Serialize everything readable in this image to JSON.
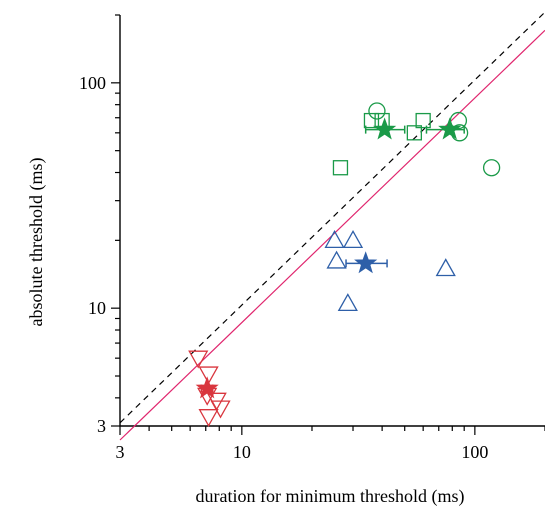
{
  "chart_data": {
    "type": "scatter",
    "xlabel": "duration for minimum threshold (ms)",
    "ylabel": "absolute threshold (ms)",
    "x_scale": "log",
    "y_scale": "log",
    "xlim": [
      3,
      200
    ],
    "ylim": [
      3,
      200
    ],
    "x_ticks": [
      3,
      10,
      100
    ],
    "y_ticks": [
      3,
      10,
      100
    ],
    "grid": false,
    "lines": [
      {
        "style": "dashed",
        "color": "#000000",
        "points": [
          [
            3,
            3.1
          ],
          [
            200,
            206
          ]
        ]
      },
      {
        "style": "solid",
        "color": "#e0266e",
        "points": [
          [
            3,
            2.6
          ],
          [
            200,
            171
          ]
        ]
      }
    ],
    "series": [
      {
        "color": "#d9363e",
        "marker": "triangle-down",
        "points": [
          [
            6.5,
            6.0
          ],
          [
            7.2,
            5.1
          ],
          [
            7.1,
            4.1
          ],
          [
            7.8,
            3.9
          ],
          [
            8.1,
            3.6
          ],
          [
            7.2,
            3.3
          ]
        ]
      },
      {
        "color": "#d9363e",
        "marker": "star",
        "points": [
          [
            7.1,
            4.4
          ]
        ],
        "xerr": [
          [
            6.7,
            7.5
          ]
        ]
      },
      {
        "color": "#2e5fa8",
        "marker": "triangle-up",
        "points": [
          [
            25,
            20
          ],
          [
            30,
            20
          ],
          [
            25.5,
            16.2
          ],
          [
            28.5,
            10.5
          ],
          [
            75,
            15
          ]
        ]
      },
      {
        "color": "#2e5fa8",
        "marker": "star",
        "points": [
          [
            34,
            15.8
          ]
        ],
        "xerr": [
          [
            28,
            42
          ]
        ]
      },
      {
        "color": "#1a9a48",
        "marker": "square",
        "points": [
          [
            36,
            68
          ],
          [
            40,
            68
          ],
          [
            55,
            60
          ],
          [
            60,
            68
          ],
          [
            26.5,
            42
          ]
        ]
      },
      {
        "color": "#1a9a48",
        "marker": "circle",
        "points": [
          [
            38,
            75
          ],
          [
            85,
            68
          ],
          [
            86,
            60
          ],
          [
            118,
            42
          ]
        ]
      },
      {
        "color": "#1a9a48",
        "marker": "star",
        "points": [
          [
            41,
            62
          ],
          [
            78,
            62
          ]
        ],
        "xerr": [
          [
            34,
            50
          ],
          [
            62,
            90
          ]
        ]
      }
    ]
  }
}
